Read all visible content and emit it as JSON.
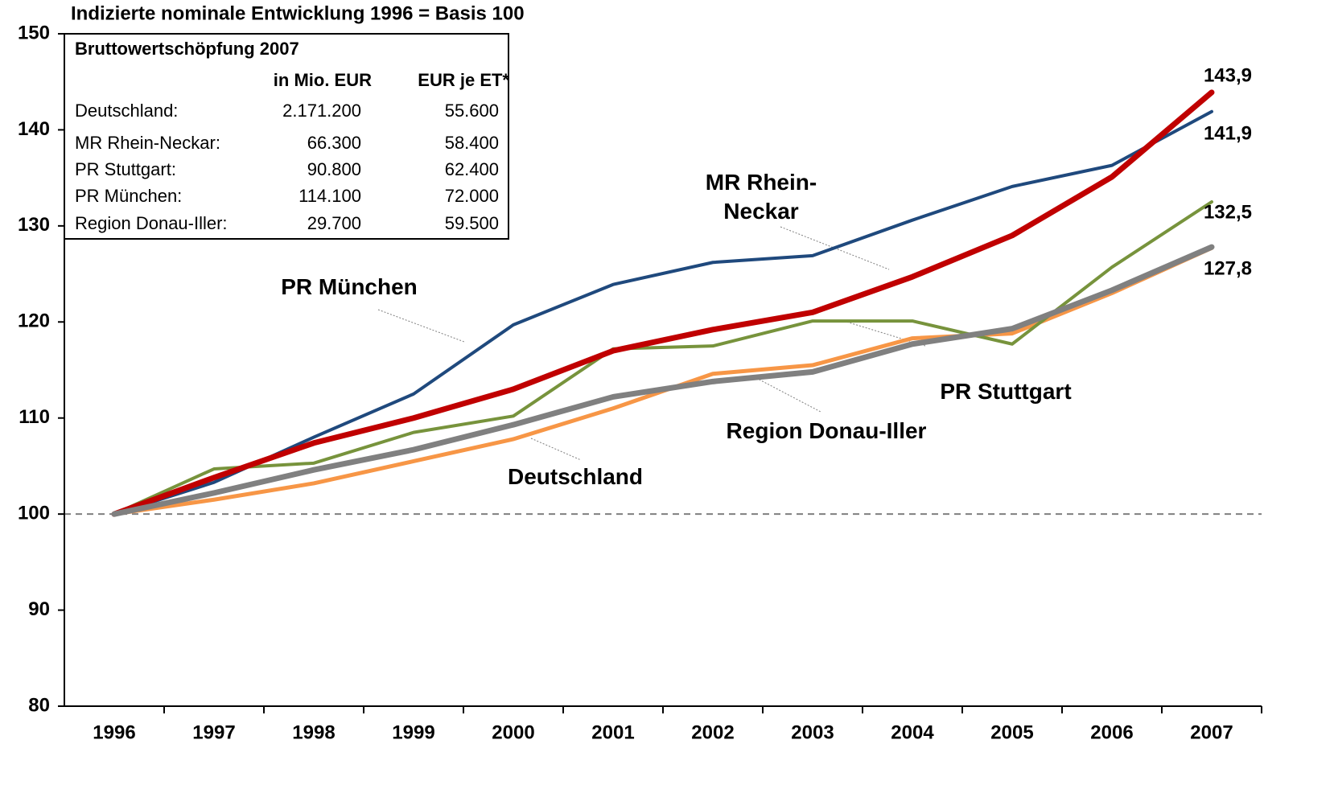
{
  "chart_data": {
    "type": "line",
    "title": "Indizierte nominale Entwicklung 1996 = Basis 100",
    "categories": [
      "1996",
      "1997",
      "1998",
      "1999",
      "2000",
      "2001",
      "2002",
      "2003",
      "2004",
      "2005",
      "2006",
      "2007"
    ],
    "series": [
      {
        "name": "PR München",
        "color": "#1f497d",
        "values": [
          100,
          103.3,
          108,
          112.5,
          119.7,
          123.9,
          126.2,
          126.9,
          130.6,
          134.1,
          136.3,
          141.9
        ],
        "value_labels": [
          null,
          null,
          null,
          null,
          null,
          null,
          null,
          null,
          null,
          null,
          null,
          "141,9"
        ]
      },
      {
        "name": "MR Rhein-Neckar",
        "color": "#f79646",
        "values": [
          100,
          101.5,
          103.2,
          105.5,
          107.8,
          111,
          114.6,
          115.5,
          118.3,
          118.8,
          123,
          127.7
        ]
      },
      {
        "name": "PR Stuttgart",
        "color": "#77933c",
        "values": [
          100,
          104.7,
          105.3,
          108.5,
          110.2,
          117.2,
          117.5,
          120.1,
          120.1,
          117.7,
          125.7,
          132.5
        ],
        "value_labels": [
          null,
          null,
          null,
          null,
          null,
          null,
          null,
          null,
          null,
          null,
          null,
          "132,5"
        ]
      },
      {
        "name": "Region Donau-Iller",
        "color": "#c00000",
        "values": [
          100,
          103.8,
          107.4,
          110,
          113,
          117,
          119.2,
          121,
          124.7,
          129,
          135.1,
          143.9
        ],
        "value_labels": [
          null,
          null,
          null,
          null,
          null,
          null,
          null,
          null,
          null,
          null,
          null,
          "143,9"
        ]
      },
      {
        "name": "Deutschland",
        "color": "#808080",
        "values": [
          100,
          102.2,
          104.6,
          106.7,
          109.3,
          112.2,
          113.8,
          114.8,
          117.7,
          119.3,
          123.3,
          127.8
        ],
        "value_labels": [
          null,
          null,
          null,
          null,
          null,
          null,
          null,
          null,
          null,
          null,
          null,
          "127,8"
        ]
      }
    ],
    "ylim": [
      80,
      150
    ],
    "yticks": [
      80,
      90,
      100,
      110,
      120,
      130,
      140,
      150
    ],
    "reference_line": 100,
    "table": {
      "title": "Bruttowertschöpfung 2007",
      "columns": [
        "in Mio. EUR",
        "EUR je ET*"
      ],
      "rows": [
        [
          "Deutschland:",
          "2.171.200",
          "55.600"
        ],
        [
          "MR Rhein-Neckar:",
          "66.300",
          "58.400"
        ],
        [
          "PR Stuttgart:",
          "90.800",
          "62.400"
        ],
        [
          "PR München:",
          "114.100",
          "72.000"
        ],
        [
          "Region Donau-Iller:",
          "29.700",
          "59.500"
        ]
      ]
    }
  }
}
